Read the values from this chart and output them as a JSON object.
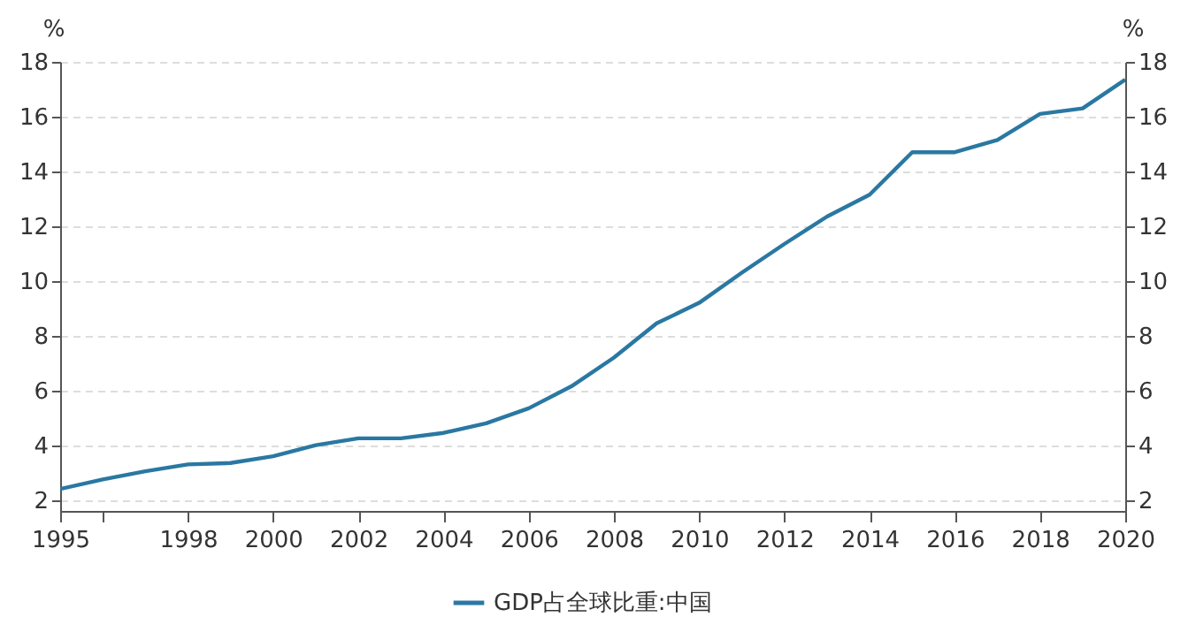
{
  "chart_data": {
    "type": "line",
    "ylabel": "%",
    "y2label": "%",
    "x": [
      1995,
      1996,
      1997,
      1998,
      1999,
      2000,
      2001,
      2002,
      2003,
      2004,
      2005,
      2006,
      2007,
      2008,
      2009,
      2010,
      2011,
      2012,
      2013,
      2014,
      2015,
      2016,
      2017,
      2018,
      2019,
      2020
    ],
    "series": [
      {
        "name": "GDP占全球比重:中国",
        "color": "#2a78a2",
        "values": [
          2.4,
          2.75,
          3.05,
          3.3,
          3.35,
          3.6,
          4.0,
          4.25,
          4.25,
          4.45,
          4.8,
          5.35,
          6.15,
          7.2,
          8.45,
          9.2,
          10.3,
          11.35,
          12.35,
          13.15,
          14.7,
          14.7,
          15.15,
          16.1,
          16.3,
          17.35
        ]
      }
    ],
    "xlim": [
      1995,
      2020
    ],
    "xticks": [
      1995,
      {
        "value": 1996,
        "label": null
      },
      1998,
      2000,
      2002,
      2004,
      2006,
      2008,
      2010,
      2012,
      2014,
      2016,
      2018,
      2020
    ],
    "ylim": [
      1.6,
      18
    ],
    "yticks": [
      2,
      4,
      6,
      8,
      10,
      12,
      14,
      16,
      18
    ],
    "y2lim": [
      1.6,
      18
    ],
    "y2ticks": [
      2,
      4,
      6,
      8,
      10,
      12,
      14,
      16,
      18
    ],
    "grid": "y",
    "legend": "bottom",
    "line_style": "solid"
  }
}
